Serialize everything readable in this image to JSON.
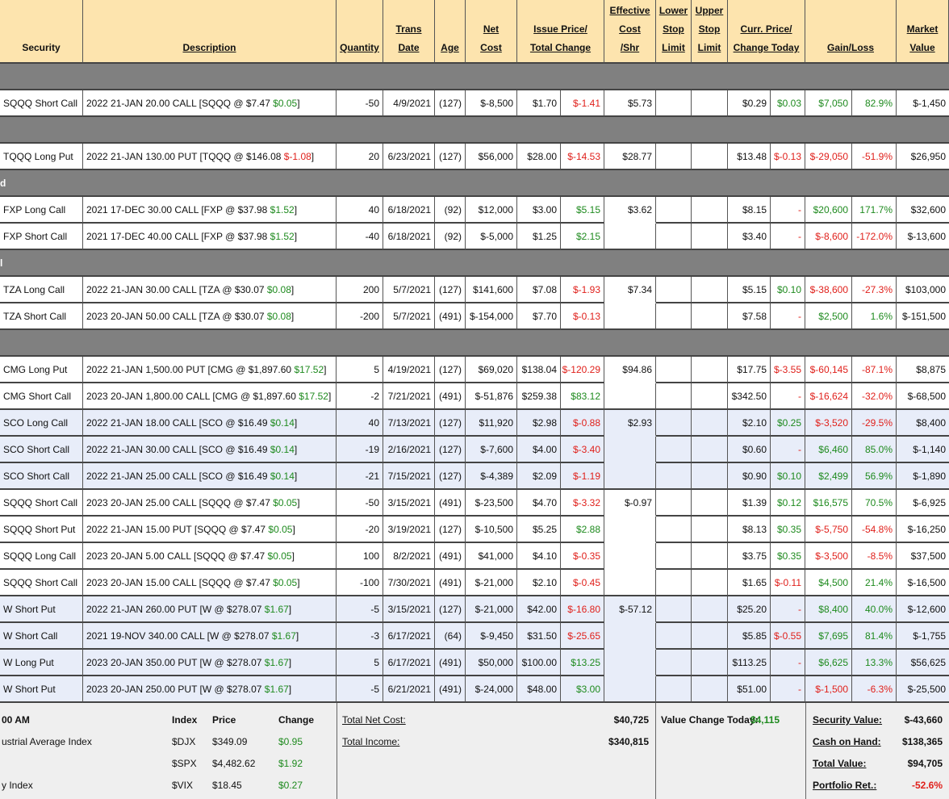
{
  "header": [
    [
      "Security"
    ],
    [
      "Description"
    ],
    [
      "Quantity"
    ],
    [
      "Trans",
      "Date"
    ],
    [
      "Age"
    ],
    [
      "Net",
      "Cost"
    ],
    [
      "Issue Price/",
      "Total Change"
    ],
    [
      "Effective",
      "Cost",
      "/Shr"
    ],
    [
      "Lower",
      "Stop",
      "Limit"
    ],
    [
      "Upper",
      "Stop",
      "Limit"
    ],
    [
      "Curr. Price/",
      "Change Today"
    ],
    [
      "Gain/Loss"
    ],
    [
      "Market",
      "Value"
    ]
  ],
  "table": {
    "rows": [
      {
        "separator": true
      },
      {
        "cells": [
          "SQQQ Short Call",
          [
            "2022 21-JAN 20.00 CALL [SQQQ @ $7.47 ",
            "$0.05",
            "]"
          ],
          "-50",
          "4/9/2021",
          "(127)",
          "$-8,500",
          "$1.70",
          "$-1.41",
          "$5.73",
          "$0.29",
          "$0.03",
          "$7,050",
          "82.9%",
          "$-1,450"
        ]
      },
      {
        "separator": true
      },
      {
        "cells": [
          "TQQQ Long Put",
          [
            "2022 21-JAN 130.00 PUT [TQQQ @ $146.08 ",
            "$-1.08",
            "]"
          ],
          "20",
          "6/23/2021",
          "(127)",
          "$56,000",
          "$28.00",
          "$-14.53",
          "$28.77",
          "$13.48",
          "$-0.13",
          "$-29,050",
          "-51.9%",
          "$26,950"
        ]
      },
      {
        "separator": true,
        "label": "d"
      },
      {
        "cells": [
          "FXP Long Call",
          [
            "2021 17-DEC 30.00 CALL [FXP @ $37.98 ",
            "$1.52",
            "]"
          ],
          "40",
          "6/18/2021",
          "(92)",
          "$12,000",
          "$3.00",
          "$5.15",
          "$3.62",
          "$8.15",
          "-",
          "$20,600",
          "171.7%",
          "$32,600"
        ]
      },
      {
        "cells": [
          "FXP Short Call",
          [
            "2021 17-DEC 40.00 CALL [FXP @ $37.98 ",
            "$1.52",
            "]"
          ],
          "-40",
          "6/18/2021",
          "(92)",
          "$-5,000",
          "$1.25",
          "$2.15",
          null,
          "$3.40",
          "-",
          "$-8,600",
          "-172.0%",
          "$-13,600"
        ]
      },
      {
        "separator": true,
        "label": "l"
      },
      {
        "cells": [
          "TZA Long Call",
          [
            "2022 21-JAN 30.00 CALL [TZA @ $30.07 ",
            "$0.08",
            "]"
          ],
          "200",
          "5/7/2021",
          "(127)",
          "$141,600",
          "$7.08",
          "$-1.93",
          "$7.34",
          "$5.15",
          "$0.10",
          "$-38,600",
          "-27.3%",
          "$103,000"
        ]
      },
      {
        "cells": [
          "TZA Short Call",
          [
            "2023 20-JAN 50.00 CALL [TZA @ $30.07 ",
            "$0.08",
            "]"
          ],
          "-200",
          "5/7/2021",
          "(491)",
          "$-154,000",
          "$7.70",
          "$-0.13",
          null,
          "$7.58",
          "-",
          "$2,500",
          "1.6%",
          "$-151,500"
        ]
      },
      {
        "separator": true
      },
      {
        "cells": [
          "CMG Long Put",
          [
            "2022 21-JAN 1,500.00 PUT [CMG @ $1,897.60 ",
            "$17.52",
            "]"
          ],
          "5",
          "4/19/2021",
          "(127)",
          "$69,020",
          "$138.04",
          "$-120.29",
          "$94.86",
          "$17.75",
          "$-3.55",
          "$-60,145",
          "-87.1%",
          "$8,875"
        ]
      },
      {
        "cells": [
          "CMG Short Call",
          [
            "2023 20-JAN 1,800.00 CALL [CMG @ $1,897.60 ",
            "$17.52",
            "]"
          ],
          "-2",
          "7/21/2021",
          "(491)",
          "$-51,876",
          "$259.38",
          "$83.12",
          null,
          "$342.50",
          "-",
          "$-16,624",
          "-32.0%",
          "$-68,500"
        ]
      },
      {
        "highlight": true,
        "cells": [
          "SCO Long Call",
          [
            "2022 21-JAN 18.00 CALL [SCO @ $16.49 ",
            "$0.14",
            "]"
          ],
          "40",
          "7/13/2021",
          "(127)",
          "$11,920",
          "$2.98",
          "$-0.88",
          "$2.93",
          "$2.10",
          "$0.25",
          "$-3,520",
          "-29.5%",
          "$8,400"
        ]
      },
      {
        "highlight": true,
        "cells": [
          "SCO Short Call",
          [
            "2022 21-JAN 30.00 CALL [SCO @ $16.49 ",
            "$0.14",
            "]"
          ],
          "-19",
          "2/16/2021",
          "(127)",
          "$-7,600",
          "$4.00",
          "$-3.40",
          null,
          "$0.60",
          "-",
          "$6,460",
          "85.0%",
          "$-1,140"
        ]
      },
      {
        "highlight": true,
        "cells": [
          "SCO Short Call",
          [
            "2022 21-JAN 25.00 CALL [SCO @ $16.49 ",
            "$0.14",
            "]"
          ],
          "-21",
          "7/15/2021",
          "(127)",
          "$-4,389",
          "$2.09",
          "$-1.19",
          null,
          "$0.90",
          "$0.10",
          "$2,499",
          "56.9%",
          "$-1,890"
        ]
      },
      {
        "cells": [
          "SQQQ Short Call",
          [
            "2023 20-JAN 25.00 CALL [SQQQ @ $7.47 ",
            "$0.05",
            "]"
          ],
          "-50",
          "3/15/2021",
          "(491)",
          "$-23,500",
          "$4.70",
          "$-3.32",
          "$-0.97",
          "$1.39",
          "$0.12",
          "$16,575",
          "70.5%",
          "$-6,925"
        ]
      },
      {
        "cells": [
          "SQQQ Short Put",
          [
            "2022 21-JAN 15.00 PUT [SQQQ @ $7.47 ",
            "$0.05",
            "]"
          ],
          "-20",
          "3/19/2021",
          "(127)",
          "$-10,500",
          "$5.25",
          "$2.88",
          null,
          "$8.13",
          "$0.35",
          "$-5,750",
          "-54.8%",
          "$-16,250"
        ]
      },
      {
        "cells": [
          "SQQQ Long Call",
          [
            "2023 20-JAN 5.00 CALL [SQQQ @ $7.47 ",
            "$0.05",
            "]"
          ],
          "100",
          "8/2/2021",
          "(491)",
          "$41,000",
          "$4.10",
          "$-0.35",
          null,
          "$3.75",
          "$0.35",
          "$-3,500",
          "-8.5%",
          "$37,500"
        ]
      },
      {
        "cells": [
          "SQQQ Short Call",
          [
            "2023 20-JAN 15.00 CALL [SQQQ @ $7.47 ",
            "$0.05",
            "]"
          ],
          "-100",
          "7/30/2021",
          "(491)",
          "$-21,000",
          "$2.10",
          "$-0.45",
          null,
          "$1.65",
          "$-0.11",
          "$4,500",
          "21.4%",
          "$-16,500"
        ]
      },
      {
        "highlight": true,
        "cells": [
          "W Short Put",
          [
            "2022 21-JAN 260.00 PUT [W @ $278.07 ",
            "$1.67",
            "]"
          ],
          "-5",
          "3/15/2021",
          "(127)",
          "$-21,000",
          "$42.00",
          "$-16.80",
          "$-57.12",
          "$25.20",
          "-",
          "$8,400",
          "40.0%",
          "$-12,600"
        ]
      },
      {
        "highlight": true,
        "cells": [
          "W Short Call",
          [
            "2021 19-NOV 340.00 CALL [W @ $278.07 ",
            "$1.67",
            "]"
          ],
          "-3",
          "6/17/2021",
          "(64)",
          "$-9,450",
          "$31.50",
          "$-25.65",
          null,
          "$5.85",
          "$-0.55",
          "$7,695",
          "81.4%",
          "$-1,755"
        ]
      },
      {
        "highlight": true,
        "cells": [
          "W Long Put",
          [
            "2023 20-JAN 350.00 PUT [W @ $278.07 ",
            "$1.67",
            "]"
          ],
          "5",
          "6/17/2021",
          "(491)",
          "$50,000",
          "$100.00",
          "$13.25",
          null,
          "$113.25",
          "-",
          "$6,625",
          "13.3%",
          "$56,625"
        ]
      },
      {
        "highlight": true,
        "cells": [
          "W Short Put",
          [
            "2023 20-JAN 250.00 PUT [W @ $278.07 ",
            "$1.67",
            "]"
          ],
          "-5",
          "6/21/2021",
          "(491)",
          "$-24,000",
          "$48.00",
          "$3.00",
          null,
          "$51.00",
          "-",
          "$-1,500",
          "-6.3%",
          "$-25,500"
        ]
      }
    ]
  },
  "footer": {
    "time": "00 AM",
    "index_header": [
      "Index",
      "Price",
      "Change"
    ],
    "indexes": [
      {
        "name": "ustrial Average Index",
        "symbol": "$DJX",
        "price": "$349.09",
        "change": "$0.95"
      },
      {
        "symbol": "$SPX",
        "price": "$4,482.62",
        "change": "$1.92"
      },
      {
        "name": "y Index",
        "symbol": "$VIX",
        "price": "$18.45",
        "change": "$0.27"
      }
    ],
    "totals": [
      {
        "label": "Total Net Cost:",
        "value": "$40,725"
      },
      {
        "label": "Total Income:",
        "value": "$340,815"
      }
    ],
    "value_change": {
      "label": "Value Change Today:",
      "value": "$4,115"
    },
    "summary": [
      {
        "label": "Security Value:",
        "value": "$-43,660"
      },
      {
        "label": "Cash on Hand:",
        "value": "$138,365"
      },
      {
        "label": "Total Value:",
        "value": "$94,705"
      },
      {
        "label": "Portfolio Ret.:",
        "value": "-52.6%"
      }
    ]
  }
}
